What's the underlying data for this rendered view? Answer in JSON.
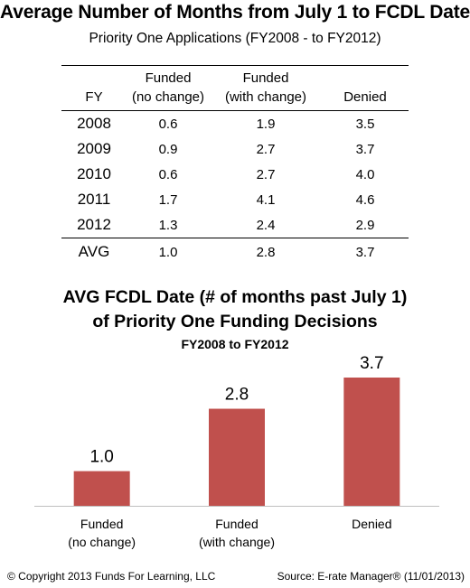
{
  "header": {
    "title": "Average Number of Months from July 1 to FCDL Date",
    "subtitle": "Priority One Applications (FY2008 - to FY2012)"
  },
  "table": {
    "headers": [
      {
        "line1": "",
        "line2": "FY"
      },
      {
        "line1": "Funded",
        "line2": "(no change)"
      },
      {
        "line1": "Funded",
        "line2": "(with change)"
      },
      {
        "line1": "",
        "line2": "Denied"
      }
    ],
    "rows": [
      [
        "2008",
        "0.6",
        "1.9",
        "3.5"
      ],
      [
        "2009",
        "0.9",
        "2.7",
        "3.7"
      ],
      [
        "2010",
        "0.6",
        "2.7",
        "4.0"
      ],
      [
        "2011",
        "1.7",
        "4.1",
        "4.6"
      ],
      [
        "2012",
        "1.3",
        "2.4",
        "2.9"
      ]
    ],
    "avg": [
      "AVG",
      "1.0",
      "2.8",
      "3.7"
    ]
  },
  "chart_data": {
    "type": "bar",
    "title_line1": "AVG FCDL Date (# of months past July 1)",
    "title_line2": "of Priority One Funding Decisions",
    "subtitle": "FY2008 to FY2012",
    "categories": [
      [
        "Funded",
        "(no change)"
      ],
      [
        "Funded",
        "(with change)"
      ],
      [
        "Denied"
      ]
    ],
    "values": [
      1.0,
      2.8,
      3.7
    ],
    "labels": [
      "1.0",
      "2.8",
      "3.7"
    ],
    "ylim": [
      0,
      3.7
    ],
    "bar_color": "#c0504d",
    "grid": false,
    "legend": "none"
  },
  "footer": {
    "copyright": "© Copyright 2013 Funds For Learning, LLC",
    "source": "Source: E-rate Manager® (11/01/2013)"
  }
}
